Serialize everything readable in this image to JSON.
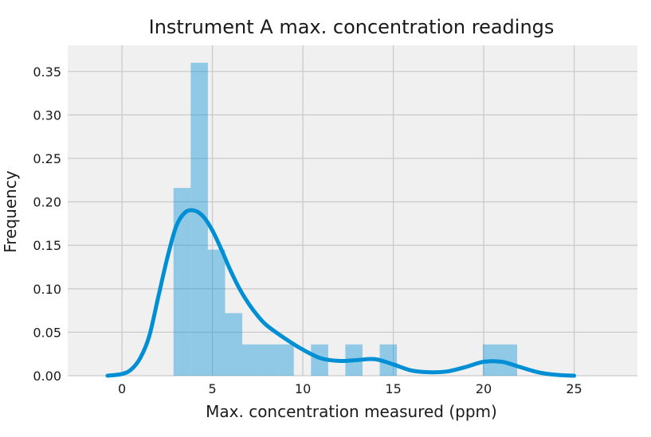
{
  "chart_data": {
    "type": "bar",
    "title": "Instrument A max. concentration readings",
    "xlabel": "Max. concentration measured (ppm)",
    "ylabel": "Frequency",
    "xlim": [
      -3,
      28.5
    ],
    "ylim": [
      0,
      0.38
    ],
    "x_ticks": [
      0,
      5,
      10,
      15,
      20,
      25
    ],
    "y_ticks": [
      0.0,
      0.05,
      0.1,
      0.15,
      0.2,
      0.25,
      0.3,
      0.35
    ],
    "grid": true,
    "bin_width": 0.95,
    "series": [
      {
        "kind": "histogram",
        "bins": [
          {
            "x0": 2.85,
            "x1": 3.8,
            "value": 0.216
          },
          {
            "x0": 3.8,
            "x1": 4.75,
            "value": 0.36
          },
          {
            "x0": 4.75,
            "x1": 5.7,
            "value": 0.145
          },
          {
            "x0": 5.7,
            "x1": 6.65,
            "value": 0.072
          },
          {
            "x0": 6.65,
            "x1": 7.6,
            "value": 0.036
          },
          {
            "x0": 7.6,
            "x1": 8.55,
            "value": 0.036
          },
          {
            "x0": 8.55,
            "x1": 9.5,
            "value": 0.036
          },
          {
            "x0": 10.45,
            "x1": 11.4,
            "value": 0.036
          },
          {
            "x0": 12.35,
            "x1": 13.3,
            "value": 0.036
          },
          {
            "x0": 14.25,
            "x1": 15.2,
            "value": 0.036
          },
          {
            "x0": 19.95,
            "x1": 20.9,
            "value": 0.036
          },
          {
            "x0": 20.9,
            "x1": 21.85,
            "value": 0.036
          }
        ]
      },
      {
        "kind": "kde",
        "x": [
          -0.8,
          0,
          0.5,
          1,
          1.5,
          2,
          2.5,
          3,
          3.5,
          4,
          4.5,
          5,
          5.5,
          6,
          6.5,
          7,
          7.5,
          8,
          9,
          10,
          11,
          12,
          13,
          14,
          15,
          16,
          17,
          18,
          19,
          20,
          21,
          22,
          23,
          24,
          25
        ],
        "y": [
          0.0,
          0.002,
          0.007,
          0.02,
          0.045,
          0.09,
          0.135,
          0.172,
          0.188,
          0.19,
          0.183,
          0.167,
          0.145,
          0.121,
          0.1,
          0.083,
          0.069,
          0.058,
          0.043,
          0.03,
          0.02,
          0.017,
          0.018,
          0.019,
          0.013,
          0.006,
          0.004,
          0.005,
          0.01,
          0.016,
          0.016,
          0.01,
          0.004,
          0.001,
          0.0
        ]
      }
    ],
    "colors": {
      "bar": "#008fd5",
      "bar_opacity": 0.4,
      "line": "#008fd5",
      "grid": "#cbcbcb",
      "background": "#f0f0f0"
    }
  }
}
